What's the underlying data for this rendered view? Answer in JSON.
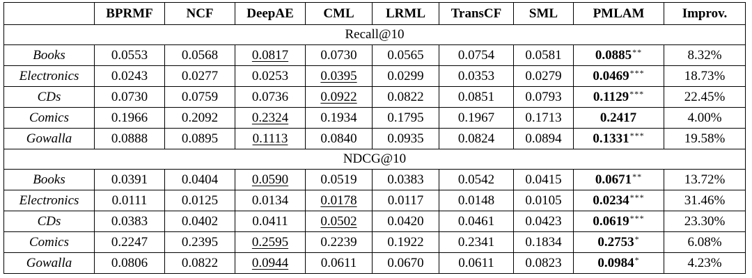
{
  "table": {
    "columns": [
      "",
      "BPRMF",
      "NCF",
      "DeepAE",
      "CML",
      "LRML",
      "TransCF",
      "SML",
      "PMLAM",
      "Improv."
    ],
    "sections": [
      {
        "title": "Recall@10",
        "rows": [
          {
            "dataset": "Books",
            "values": [
              "0.0553",
              "0.0568",
              "0.0817",
              "0.0730",
              "0.0565",
              "0.0754",
              "0.0581",
              "0.0885",
              "8.32%"
            ],
            "sig": "**",
            "second_best_col": 3
          },
          {
            "dataset": "Electronics",
            "values": [
              "0.0243",
              "0.0277",
              "0.0253",
              "0.0395",
              "0.0299",
              "0.0353",
              "0.0279",
              "0.0469",
              "18.73%"
            ],
            "sig": "***",
            "second_best_col": 4
          },
          {
            "dataset": "CDs",
            "values": [
              "0.0730",
              "0.0759",
              "0.0736",
              "0.0922",
              "0.0822",
              "0.0851",
              "0.0793",
              "0.1129",
              "22.45%"
            ],
            "sig": "***",
            "second_best_col": 4
          },
          {
            "dataset": "Comics",
            "values": [
              "0.1966",
              "0.2092",
              "0.2324",
              "0.1934",
              "0.1795",
              "0.1967",
              "0.1713",
              "0.2417",
              "4.00%"
            ],
            "sig": "",
            "second_best_col": 3
          },
          {
            "dataset": "Gowalla",
            "values": [
              "0.0888",
              "0.0895",
              "0.1113",
              "0.0840",
              "0.0935",
              "0.0824",
              "0.0894",
              "0.1331",
              "19.58%"
            ],
            "sig": "***",
            "second_best_col": 3
          }
        ]
      },
      {
        "title": "NDCG@10",
        "rows": [
          {
            "dataset": "Books",
            "values": [
              "0.0391",
              "0.0404",
              "0.0590",
              "0.0519",
              "0.0383",
              "0.0542",
              "0.0415",
              "0.0671",
              "13.72%"
            ],
            "sig": "**",
            "second_best_col": 3
          },
          {
            "dataset": "Electronics",
            "values": [
              "0.0111",
              "0.0125",
              "0.0134",
              "0.0178",
              "0.0117",
              "0.0148",
              "0.0105",
              "0.0234",
              "31.46%"
            ],
            "sig": "***",
            "second_best_col": 4
          },
          {
            "dataset": "CDs",
            "values": [
              "0.0383",
              "0.0402",
              "0.0411",
              "0.0502",
              "0.0420",
              "0.0461",
              "0.0423",
              "0.0619",
              "23.30%"
            ],
            "sig": "***",
            "second_best_col": 4
          },
          {
            "dataset": "Comics",
            "values": [
              "0.2247",
              "0.2395",
              "0.2595",
              "0.2239",
              "0.1922",
              "0.2341",
              "0.1834",
              "0.2753",
              "6.08%"
            ],
            "sig": "*",
            "second_best_col": 3
          },
          {
            "dataset": "Gowalla",
            "values": [
              "0.0806",
              "0.0822",
              "0.0944",
              "0.0611",
              "0.0670",
              "0.0611",
              "0.0823",
              "0.0984",
              "4.23%"
            ],
            "sig": "*",
            "second_best_col": 3
          }
        ]
      }
    ]
  }
}
